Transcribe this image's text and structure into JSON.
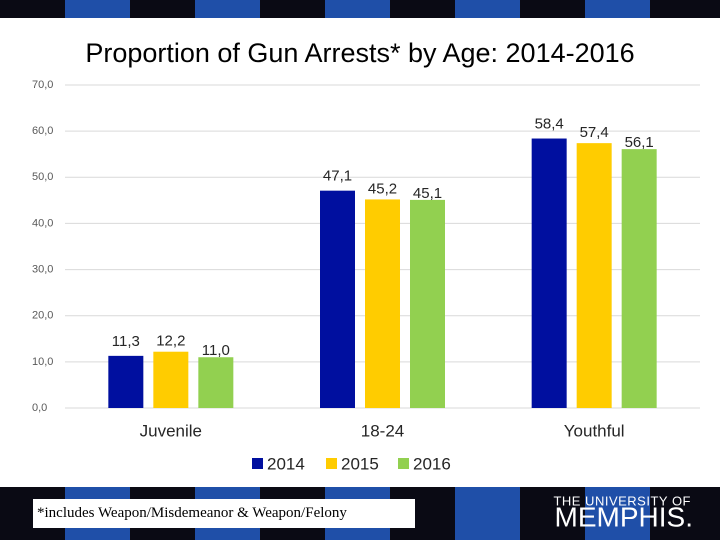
{
  "chart_data": {
    "type": "bar",
    "title": "Proportion of Gun Arrests* by Age: 2014-2016",
    "categories": [
      "Juvenile",
      "18-24",
      "Youthful"
    ],
    "series": [
      {
        "name": "2014",
        "color": "#000f9f",
        "values": [
          11.3,
          47.1,
          58.4
        ],
        "value_labels": [
          "11,3",
          "47,1",
          "58,4"
        ]
      },
      {
        "name": "2015",
        "color": "#ffcc00",
        "values": [
          12.2,
          45.2,
          57.4
        ],
        "value_labels": [
          "12,2",
          "45,2",
          "57,4"
        ]
      },
      {
        "name": "2016",
        "color": "#92d050",
        "values": [
          11.0,
          45.1,
          56.1
        ],
        "value_labels": [
          "11,0",
          "45,1",
          "56,1"
        ]
      }
    ],
    "ylim": [
      0,
      70
    ],
    "yticks": [
      {
        "value": 0,
        "label": "0,0"
      },
      {
        "value": 10,
        "label": "10,0"
      },
      {
        "value": 20,
        "label": "20,0"
      },
      {
        "value": 30,
        "label": "30,0"
      },
      {
        "value": 40,
        "label": "40,0"
      },
      {
        "value": 50,
        "label": "50,0"
      },
      {
        "value": 60,
        "label": "60,0"
      },
      {
        "value": 70,
        "label": "70,0"
      }
    ],
    "grid": true,
    "legend": "bottom"
  },
  "footer": {
    "note": "*includes Weapon/Misdemeanor & Weapon/Felony",
    "logo_top": "THE UNIVERSITY OF",
    "logo_main": "MEMPHIS."
  }
}
